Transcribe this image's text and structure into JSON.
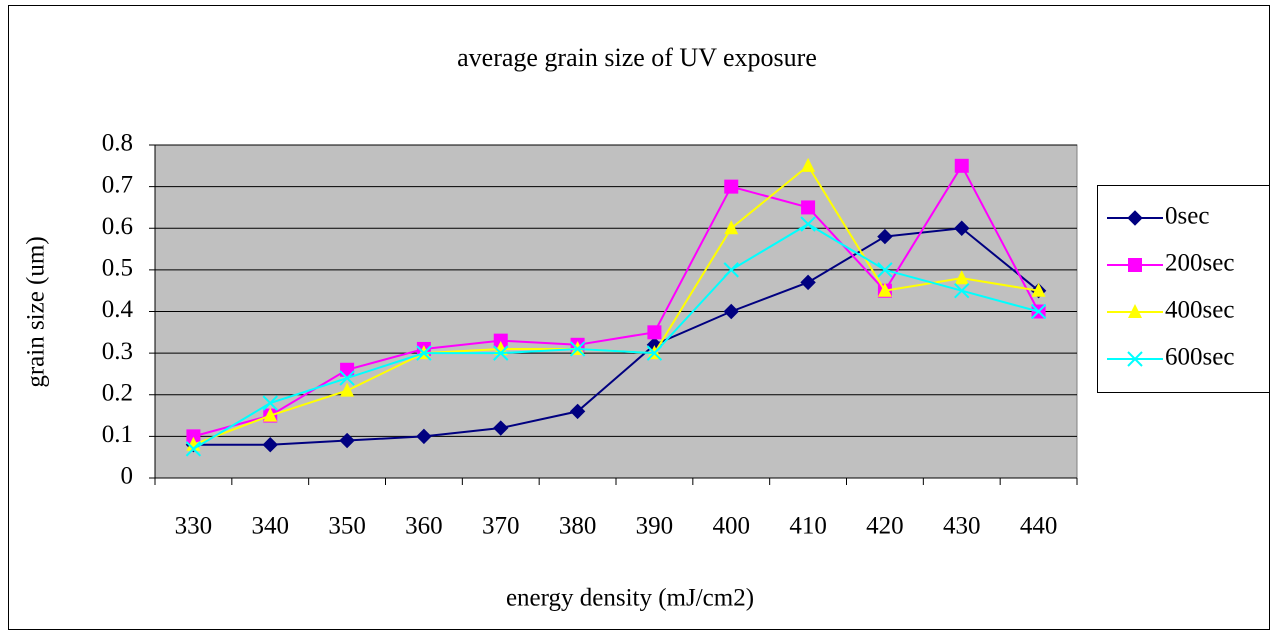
{
  "chart_data": {
    "type": "line",
    "title": "average grain size of UV exposure",
    "x_label": "energy density (mJ/cm2)",
    "y_label": "grain size (um)",
    "categories": [
      "330",
      "340",
      "350",
      "360",
      "370",
      "380",
      "390",
      "400",
      "410",
      "420",
      "430",
      "440"
    ],
    "series": [
      {
        "name": "0sec",
        "color": "#000080",
        "marker": "diamond",
        "values": [
          0.08,
          0.08,
          0.09,
          0.1,
          0.12,
          0.16,
          0.32,
          0.4,
          0.47,
          0.58,
          0.6,
          0.45
        ]
      },
      {
        "name": "200sec",
        "color": "#ff00ff",
        "marker": "square",
        "values": [
          0.1,
          0.15,
          0.26,
          0.31,
          0.33,
          0.32,
          0.35,
          0.7,
          0.65,
          0.45,
          0.75,
          0.4
        ]
      },
      {
        "name": "400sec",
        "color": "#ffff00",
        "marker": "triangle",
        "values": [
          0.08,
          0.15,
          0.21,
          0.3,
          0.31,
          0.31,
          0.3,
          0.6,
          0.75,
          0.45,
          0.48,
          0.45
        ]
      },
      {
        "name": "600sec",
        "color": "#00ffff",
        "marker": "x",
        "values": [
          0.07,
          0.18,
          0.24,
          0.3,
          0.3,
          0.31,
          0.3,
          0.5,
          0.61,
          0.5,
          0.45,
          0.4
        ]
      }
    ],
    "ylim": [
      0,
      0.8
    ],
    "yticks": [
      0,
      0.1,
      0.2,
      0.3,
      0.4,
      0.5,
      0.6,
      0.7,
      0.8
    ],
    "grid": true,
    "legend": "right",
    "plot_background": "#c0c0c0"
  }
}
